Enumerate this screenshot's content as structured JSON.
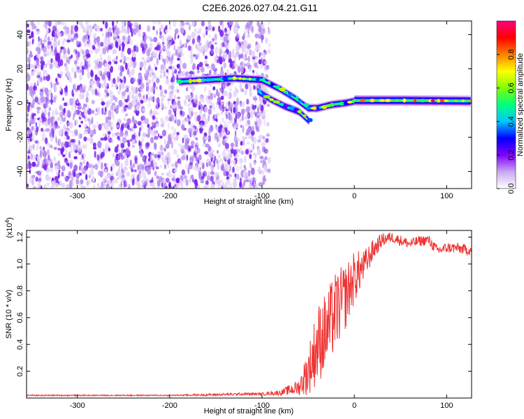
{
  "title": "C2E6.2026.027.04.21.G11",
  "chart_data": [
    {
      "type": "heatmap",
      "xlabel": "Height of straight line (km)",
      "ylabel": "Frequency (Hz)",
      "xlim": [
        -355,
        127
      ],
      "ylim": [
        -50,
        48
      ],
      "xticks": [
        -300,
        -200,
        -100,
        0,
        100
      ],
      "yticks": [
        -40,
        -20,
        0,
        20,
        40
      ],
      "colorbar": {
        "label": "Normalized spectral amplitude",
        "range": [
          0,
          1
        ],
        "ticks": [
          0.0,
          0.2,
          0.4,
          0.6,
          0.8
        ],
        "colors": [
          "#ffffff",
          "#c9a8f0",
          "#8000ff",
          "#0000ff",
          "#00c8ff",
          "#00ff80",
          "#80ff00",
          "#ffff00",
          "#ff8000",
          "#ff0000",
          "#ff0080"
        ]
      },
      "noise_region": {
        "x_range": [
          -355,
          -100
        ],
        "freq_range": [
          -50,
          48
        ],
        "amplitude": "0.0-0.15"
      },
      "signal_tracks": [
        {
          "name": "upper-track",
          "points": [
            [
              -190,
              12.5
            ],
            [
              -160,
              13.5
            ],
            [
              -130,
              14.5
            ],
            [
              -100,
              13.5
            ],
            [
              -80,
              8
            ],
            [
              -65,
              3
            ],
            [
              -50,
              -3
            ],
            [
              -40,
              -3
            ],
            [
              -25,
              -1
            ],
            [
              -10,
              0
            ],
            [
              0,
              1
            ]
          ],
          "amplitude": 0.45
        },
        {
          "name": "lower-track",
          "points": [
            [
              -105,
              7
            ],
            [
              -90,
              2
            ],
            [
              -75,
              -2
            ],
            [
              -60,
              -5
            ],
            [
              -48,
              -11
            ]
          ],
          "amplitude": 0.4
        },
        {
          "name": "stable-track",
          "points": [
            [
              0,
              1.5
            ],
            [
              50,
              1.5
            ],
            [
              127,
              1.2
            ]
          ],
          "amplitude": 0.6
        }
      ]
    },
    {
      "type": "line",
      "xlabel": "Height of straight line (km)",
      "ylabel": "SNR (10 * v/v)",
      "y_scale_label": "(x10",
      "y_scale_exp": "4",
      "y_scale_close": ")",
      "xlim": [
        -355,
        127
      ],
      "ylim": [
        0,
        1.25
      ],
      "xticks": [
        -300,
        -200,
        -100,
        0,
        100
      ],
      "yticks": [
        0.2,
        0.4,
        0.6,
        0.8,
        1.0,
        1.2
      ],
      "series": [
        {
          "name": "SNR",
          "color": "#ee3333",
          "x": [
            -355,
            -300,
            -250,
            -200,
            -150,
            -120,
            -100,
            -80,
            -60,
            -50,
            -40,
            -30,
            -20,
            -10,
            0,
            10,
            20,
            30,
            40,
            60,
            70,
            80,
            90,
            100,
            110,
            127
          ],
          "y": [
            0.02,
            0.02,
            0.02,
            0.02,
            0.025,
            0.03,
            0.03,
            0.04,
            0.08,
            0.2,
            0.4,
            0.5,
            0.65,
            0.75,
            0.9,
            0.98,
            1.1,
            1.18,
            1.2,
            1.15,
            1.17,
            1.18,
            1.1,
            1.12,
            1.12,
            1.1
          ],
          "noise_amplitude": [
            0.005,
            0.005,
            0.005,
            0.005,
            0.01,
            0.01,
            0.01,
            0.02,
            0.06,
            0.18,
            0.3,
            0.3,
            0.3,
            0.25,
            0.2,
            0.12,
            0.08,
            0.05,
            0.04,
            0.04,
            0.04,
            0.04,
            0.04,
            0.04,
            0.04,
            0.04
          ]
        }
      ]
    }
  ]
}
